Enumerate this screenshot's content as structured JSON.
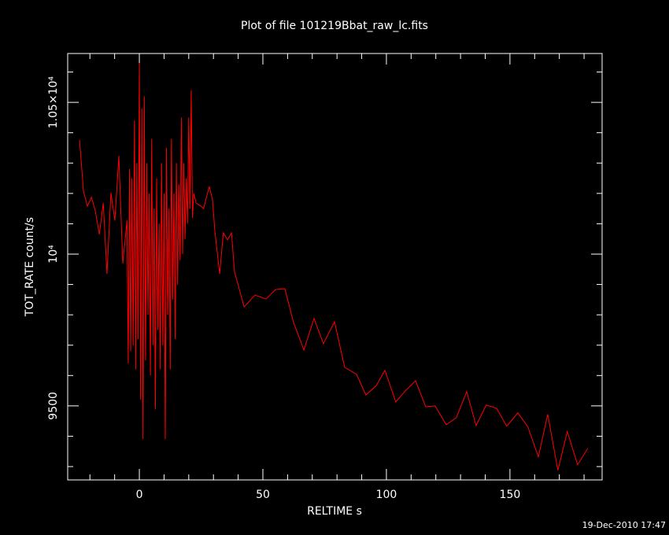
{
  "chart_data": {
    "type": "line",
    "title": "Plot of file 101219Bbat_raw_lc.fits",
    "x_label": "RELTIME  s",
    "y_label": "TOT_RATE  count/s",
    "footer": "19-Dec-2010 17:47",
    "xlim": [
      -29,
      187.3
    ],
    "ylim": [
      9256,
      10661
    ],
    "xticks": [
      0,
      50,
      100,
      150
    ],
    "yticks": [
      9500,
      {
        "value": 10000,
        "label": "10⁴"
      },
      {
        "value": 10500,
        "label": "1.05×10⁴"
      }
    ],
    "xminorticks": [
      -20,
      -10,
      10,
      20,
      30,
      40,
      60,
      70,
      80,
      90,
      110,
      120,
      130,
      140,
      160,
      170,
      180
    ],
    "yminorticks": [
      9300,
      9400,
      9600,
      9700,
      9800,
      9900,
      10100,
      10200,
      10300,
      10400,
      10600
    ],
    "x": [
      -24.2,
      -22.6,
      -21,
      -19.4,
      -17.8,
      -16.2,
      -14.6,
      -13.1,
      -11.5,
      -9.9,
      -8.3,
      -6.7,
      -5,
      -4.5,
      -4,
      -3.5,
      -3,
      -2.5,
      -2,
      -1.5,
      -1,
      -0.5,
      0,
      0.5,
      1,
      1.5,
      2,
      2.5,
      3,
      3.5,
      4,
      4.5,
      5,
      5.5,
      6,
      6.5,
      7,
      7.5,
      8,
      8.5,
      9,
      9.5,
      10,
      10.5,
      11,
      11.5,
      12,
      12.5,
      13,
      13.5,
      14,
      14.5,
      15,
      15.5,
      16,
      16.5,
      17,
      17.5,
      18,
      18.5,
      19,
      19.5,
      20,
      20.5,
      21,
      21.5,
      22,
      23,
      25,
      26,
      28.3,
      29.6,
      30.6,
      32.5,
      34,
      35.7,
      37.3,
      38.5,
      42.4,
      46.8,
      51.3,
      55.1,
      58.9,
      62.4,
      66.6,
      70.7,
      74.5,
      79,
      83.1,
      87.9,
      91.7,
      95.9,
      99.4,
      103.8,
      107.6,
      111.8,
      115.9,
      119.7,
      124.2,
      128.3,
      132.5,
      136.3,
      140.4,
      144.6,
      148.7,
      153.2,
      157.3,
      161.5,
      165.3,
      169.4,
      173.2,
      177.4,
      181.5
    ],
    "series": [
      {
        "color": "#ff0000",
        "values": [
          10376,
          10207,
          10158,
          10187,
          10142,
          10065,
          10168,
          9935,
          10202,
          10111,
          10324,
          9969,
          10111,
          9640,
          10280,
          9680,
          10250,
          9700,
          10440,
          9620,
          10300,
          9720,
          10630,
          9520,
          10480,
          9390,
          10520,
          9650,
          10300,
          9800,
          10200,
          9600,
          10380,
          9700,
          10150,
          9490,
          10250,
          9750,
          10100,
          9620,
          10300,
          9700,
          10200,
          9390,
          10350,
          9800,
          10150,
          9620,
          10380,
          9850,
          10200,
          9720,
          10300,
          9900,
          10230,
          9980,
          10450,
          10000,
          10300,
          10050,
          10250,
          10100,
          10450,
          10150,
          10540,
          10120,
          10200,
          10168,
          10158,
          10150,
          10223,
          10180,
          10073,
          9935,
          10070,
          10047,
          10070,
          9943,
          9826,
          9865,
          9852,
          9883,
          9886,
          9775,
          9684,
          9788,
          9705,
          9777,
          9627,
          9604,
          9536,
          9567,
          9617,
          9513,
          9549,
          9583,
          9497,
          9500,
          9438,
          9461,
          9547,
          9435,
          9503,
          9492,
          9433,
          9477,
          9430,
          9332,
          9472,
          9288,
          9415,
          9306,
          9360
        ]
      }
    ]
  }
}
